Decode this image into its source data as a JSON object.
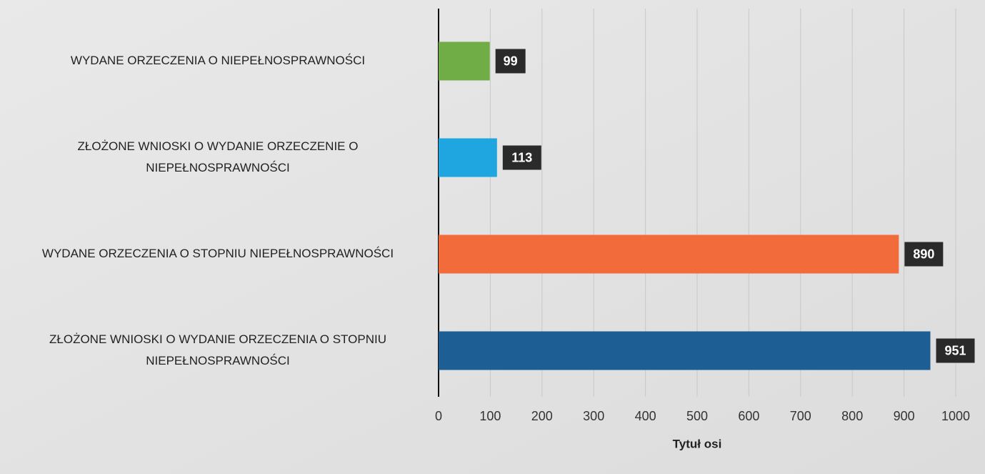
{
  "chart_data": {
    "type": "hbar",
    "categories": [
      [
        "WYDANE ORZECZENIA O NIEPEŁNOSPRAWNOŚCI"
      ],
      [
        "ZŁOŻONE WNIOSKI O WYDANIE ORZECZENIE O",
        "NIEPEŁNOSPRAWNOŚCI"
      ],
      [
        "WYDANE ORZECZENIA O STOPNIU NIEPEŁNOSPRAWNOŚCI"
      ],
      [
        "ZŁOŻONE WNIOSKI O WYDANIE ORZECZENIA O STOPNIU",
        "NIEPEŁNOSPRAWNOŚCI"
      ]
    ],
    "values": [
      99,
      113,
      890,
      951
    ],
    "colors": [
      "#70ad47",
      "#1fa6e0",
      "#f26b3a",
      "#1d5f95"
    ],
    "xlim": [
      0,
      1000
    ],
    "xticks": [
      0,
      100,
      200,
      300,
      400,
      500,
      600,
      700,
      800,
      900,
      1000
    ],
    "xlabel": "Tytuł osi",
    "grid": true
  }
}
